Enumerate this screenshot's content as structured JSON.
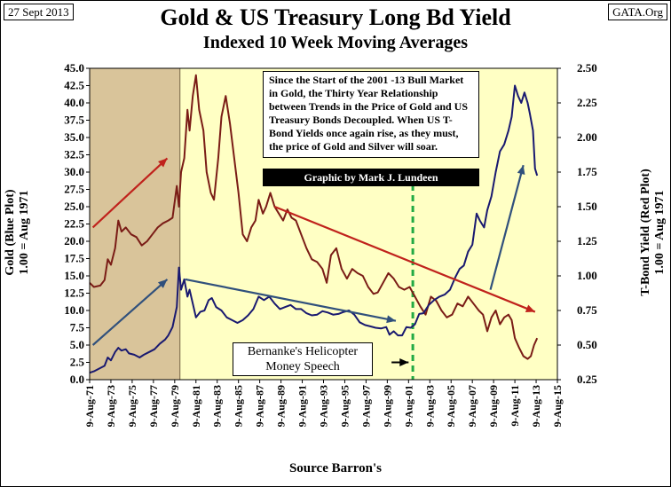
{
  "header": {
    "date": "27 Sept 2013",
    "source": "GATA.Org",
    "title": "Gold & US Treasury Long Bd Yield",
    "subtitle": "Indexed 10 Week Moving Averages"
  },
  "annotations": {
    "note": "Since the Start of the 2001 -13 Bull Market in Gold, the Thirty Year Relationship between Trends in the Price of Gold and US Treasury Bonds Decoupled. When US T-Bond Yields once again rise, as they must, the price of Gold and Silver will soar.",
    "credit": "Graphic by Mark J. Lundeen",
    "speech": "Bernanke's Helicopter Money Speech"
  },
  "colors": {
    "plot_bg": "#ffffc4",
    "shade": "#d9c49a",
    "gold": "#191970",
    "yield": "#7a1c16",
    "arrow_red": "#c0221c",
    "arrow_blue": "#30507c",
    "dashed": "#22aa44"
  },
  "chart_data": {
    "type": "line",
    "title": "Gold & US Treasury Long Bd Yield",
    "subtitle": "Indexed 10 Week Moving Averages",
    "xlabel": "Source Barron's",
    "ylabel_left": [
      "Gold (Blue Plot)",
      "1.00 = Aug 1971"
    ],
    "ylabel_right": [
      "T-Bond Yield (Red Plot)",
      "1.00 = Aug 1971"
    ],
    "x_ticks": [
      "9-Aug-71",
      "9-Aug-73",
      "9-Aug-75",
      "9-Aug-77",
      "9-Aug-79",
      "9-Aug-81",
      "9-Aug-83",
      "9-Aug-85",
      "9-Aug-87",
      "9-Aug-89",
      "9-Aug-91",
      "9-Aug-93",
      "9-Aug-95",
      "9-Aug-97",
      "9-Aug-99",
      "9-Aug-01",
      "9-Aug-03",
      "9-Aug-05",
      "9-Aug-07",
      "9-Aug-09",
      "9-Aug-11",
      "9-Aug-13",
      "9-Aug-15"
    ],
    "xlim": [
      1971.6,
      2015.6
    ],
    "y_left": {
      "min": 0,
      "max": 45,
      "ticks": [
        "0.0",
        "2.5",
        "5.0",
        "7.5",
        "10.0",
        "12.5",
        "15.0",
        "17.5",
        "20.0",
        "22.5",
        "25.0",
        "27.5",
        "30.0",
        "32.5",
        "35.0",
        "37.5",
        "40.0",
        "42.5",
        "45.0"
      ]
    },
    "y_right": {
      "min": 0.25,
      "max": 2.5,
      "ticks": [
        "0.25",
        "0.50",
        "0.75",
        "1.00",
        "1.25",
        "1.50",
        "1.75",
        "2.00",
        "2.25",
        "2.50"
      ]
    },
    "shaded_region": [
      1971.6,
      1980.1
    ],
    "vertical_marker": 2002.0,
    "series": [
      {
        "name": "Gold (Blue Plot)",
        "axis": "left",
        "x": [
          1971.6,
          1972.0,
          1972.5,
          1973.0,
          1973.3,
          1973.6,
          1974.0,
          1974.3,
          1974.6,
          1975.0,
          1975.3,
          1975.8,
          1976.3,
          1976.7,
          1977.2,
          1977.7,
          1978.2,
          1978.7,
          1979.0,
          1979.4,
          1979.8,
          1980.0,
          1980.2,
          1980.5,
          1980.8,
          1981.0,
          1981.3,
          1981.6,
          1982.0,
          1982.4,
          1982.8,
          1983.1,
          1983.5,
          1984.0,
          1984.5,
          1985.0,
          1985.5,
          1986.0,
          1986.5,
          1987.0,
          1987.5,
          1988.0,
          1988.5,
          1989.0,
          1989.5,
          1990.0,
          1990.5,
          1991.0,
          1991.5,
          1992.0,
          1992.5,
          1993.0,
          1993.5,
          1994.0,
          1994.5,
          1995.0,
          1995.5,
          1996.0,
          1996.5,
          1997.0,
          1997.5,
          1998.0,
          1998.5,
          1999.0,
          1999.5,
          1999.8,
          2000.2,
          2000.6,
          2001.0,
          2001.4,
          2001.8,
          2002.2,
          2002.6,
          2003.0,
          2003.5,
          2004.0,
          2004.5,
          2005.0,
          2005.5,
          2006.0,
          2006.4,
          2006.8,
          2007.2,
          2007.6,
          2008.0,
          2008.3,
          2008.7,
          2009.0,
          2009.4,
          2009.8,
          2010.2,
          2010.6,
          2011.0,
          2011.3,
          2011.6,
          2011.9,
          2012.2,
          2012.5,
          2012.8,
          2013.0,
          2013.3,
          2013.5,
          2013.7
        ],
        "y": [
          1.0,
          1.2,
          1.6,
          2.0,
          3.2,
          2.8,
          4.0,
          4.6,
          4.2,
          4.4,
          3.8,
          3.6,
          3.2,
          3.6,
          4.0,
          4.4,
          5.2,
          5.8,
          6.4,
          7.6,
          10.5,
          16.2,
          13.0,
          14.5,
          12.0,
          13.0,
          11.0,
          9.0,
          9.8,
          10.0,
          11.5,
          11.8,
          10.5,
          10.0,
          9.0,
          8.6,
          8.2,
          8.6,
          9.3,
          10.2,
          12.0,
          11.5,
          12.0,
          11.0,
          10.2,
          10.5,
          10.8,
          10.2,
          10.2,
          9.6,
          9.3,
          9.4,
          9.9,
          9.7,
          9.4,
          9.5,
          9.8,
          10.0,
          9.4,
          8.3,
          7.9,
          7.7,
          7.5,
          7.4,
          7.6,
          6.5,
          7.0,
          6.4,
          6.4,
          7.6,
          7.5,
          8.0,
          9.5,
          9.6,
          10.8,
          11.5,
          12.0,
          12.3,
          13.0,
          14.8,
          16.0,
          16.5,
          18.5,
          19.5,
          24.0,
          23.0,
          22.0,
          24.5,
          26.5,
          30.0,
          33.0,
          34.0,
          36.0,
          38.0,
          42.5,
          41.0,
          40.0,
          41.5,
          40.0,
          38.5,
          36.0,
          30.5,
          29.5
        ]
      },
      {
        "name": "T-Bond Yield (Red Plot)",
        "axis": "right",
        "x": [
          1971.6,
          1972.0,
          1972.6,
          1973.0,
          1973.3,
          1973.6,
          1974.0,
          1974.3,
          1974.6,
          1975.0,
          1975.5,
          1976.0,
          1976.5,
          1977.0,
          1977.5,
          1978.0,
          1978.5,
          1979.0,
          1979.4,
          1979.8,
          1980.0,
          1980.2,
          1980.5,
          1980.8,
          1981.0,
          1981.3,
          1981.6,
          1981.9,
          1982.3,
          1982.6,
          1983.0,
          1983.3,
          1983.7,
          1984.0,
          1984.4,
          1984.8,
          1985.2,
          1985.6,
          1986.0,
          1986.4,
          1986.8,
          1987.2,
          1987.5,
          1987.9,
          1988.2,
          1988.6,
          1989.0,
          1989.4,
          1989.8,
          1990.2,
          1990.6,
          1991.0,
          1991.5,
          1992.0,
          1992.5,
          1993.0,
          1993.5,
          1993.9,
          1994.3,
          1994.8,
          1995.3,
          1995.8,
          1996.3,
          1996.8,
          1997.3,
          1997.8,
          1998.3,
          1998.7,
          1999.2,
          1999.7,
          2000.2,
          2000.7,
          2001.2,
          2001.7,
          2002.2,
          2002.7,
          2003.2,
          2003.7,
          2004.2,
          2004.7,
          2005.2,
          2005.7,
          2006.2,
          2006.7,
          2007.2,
          2007.7,
          2008.2,
          2008.6,
          2009.0,
          2009.4,
          2009.8,
          2010.2,
          2010.6,
          2011.0,
          2011.3,
          2011.6,
          2012.0,
          2012.4,
          2012.8,
          2013.1,
          2013.4,
          2013.7
        ],
        "y": [
          0.95,
          0.92,
          0.93,
          0.97,
          1.12,
          1.08,
          1.2,
          1.4,
          1.32,
          1.35,
          1.3,
          1.28,
          1.22,
          1.25,
          1.3,
          1.35,
          1.38,
          1.4,
          1.42,
          1.65,
          1.5,
          1.75,
          1.85,
          2.2,
          2.05,
          2.3,
          2.45,
          2.2,
          2.05,
          1.75,
          1.6,
          1.55,
          1.85,
          2.15,
          2.3,
          2.1,
          1.85,
          1.6,
          1.3,
          1.25,
          1.35,
          1.4,
          1.55,
          1.45,
          1.5,
          1.6,
          1.5,
          1.45,
          1.4,
          1.48,
          1.42,
          1.4,
          1.3,
          1.2,
          1.12,
          1.1,
          1.05,
          0.95,
          1.15,
          1.2,
          1.05,
          0.98,
          1.05,
          1.02,
          1.0,
          0.92,
          0.87,
          0.88,
          0.95,
          1.02,
          0.98,
          0.92,
          0.9,
          0.92,
          0.85,
          0.78,
          0.72,
          0.85,
          0.82,
          0.75,
          0.7,
          0.72,
          0.8,
          0.78,
          0.85,
          0.8,
          0.75,
          0.72,
          0.6,
          0.7,
          0.75,
          0.65,
          0.7,
          0.72,
          0.68,
          0.55,
          0.48,
          0.42,
          0.4,
          0.42,
          0.5,
          0.55
        ]
      }
    ],
    "arrows": [
      {
        "color": "red",
        "from": [
          1971.9,
          22.0
        ],
        "to": [
          1978.9,
          32.0
        ],
        "axis": "left"
      },
      {
        "color": "blue",
        "from": [
          1971.9,
          5.0
        ],
        "to": [
          1978.9,
          14.5
        ],
        "axis": "left"
      },
      {
        "color": "blue",
        "from": [
          1980.6,
          14.5
        ],
        "to": [
          2000.4,
          8.5
        ],
        "axis": "left"
      },
      {
        "color": "blue",
        "from": [
          2009.3,
          13.0
        ],
        "to": [
          2012.4,
          31.0
        ],
        "axis": "left"
      },
      {
        "color": "red",
        "from": [
          1989.0,
          1.5
        ],
        "to": [
          2013.5,
          0.74
        ],
        "axis": "right"
      },
      {
        "color": "black",
        "from": [
          2000.0,
          2.5
        ],
        "to": [
          2001.6,
          2.5
        ],
        "axis": "left"
      }
    ]
  }
}
